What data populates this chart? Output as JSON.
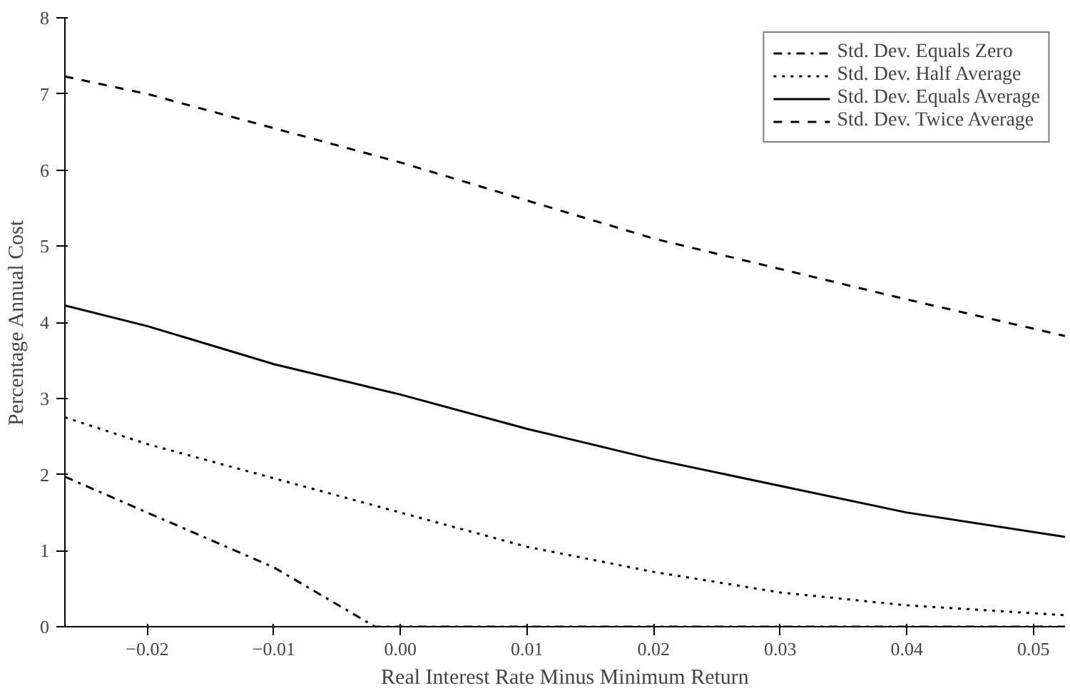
{
  "chart_data": {
    "type": "line",
    "xlabel": "Real Interest Rate Minus Minimum Return",
    "ylabel": "Percentage Annual Cost",
    "xlim": [
      -0.0265,
      0.0525
    ],
    "ylim": [
      0,
      8
    ],
    "xticks": [
      {
        "value": -0.02,
        "label": "−0.02"
      },
      {
        "value": -0.01,
        "label": "−0.01"
      },
      {
        "value": 0,
        "label": "0.00"
      },
      {
        "value": 0.01,
        "label": "0.01"
      },
      {
        "value": 0.02,
        "label": "0.02"
      },
      {
        "value": 0.03,
        "label": "0.03"
      },
      {
        "value": 0.04,
        "label": "0.04"
      },
      {
        "value": 0.05,
        "label": "0.05"
      }
    ],
    "yticks": [
      0,
      1,
      2,
      3,
      4,
      5,
      6,
      7,
      8
    ],
    "grid": false,
    "legend": "top right",
    "marker": "none",
    "series": [
      {
        "name": "Std. Dev. Equals Zero",
        "color": "#000000",
        "line_style": "dashdot",
        "x": [
          -0.0265,
          -0.02,
          -0.01,
          -0.002,
          0.0,
          0.01,
          0.02,
          0.03,
          0.04,
          0.0525
        ],
        "values": [
          1.97,
          1.5,
          0.78,
          0,
          0,
          0,
          0,
          0,
          0,
          0
        ]
      },
      {
        "name": "Std. Dev. Half Average",
        "color": "#000000",
        "line_style": "dotted",
        "x": [
          -0.0265,
          -0.02,
          -0.01,
          0.0,
          0.01,
          0.02,
          0.03,
          0.04,
          0.0525
        ],
        "values": [
          2.75,
          2.4,
          1.95,
          1.5,
          1.05,
          0.72,
          0.45,
          0.28,
          0.15
        ]
      },
      {
        "name": "Std. Dev. Equals Average",
        "color": "#000000",
        "line_style": "solid",
        "x": [
          -0.0265,
          -0.02,
          -0.01,
          0.0,
          0.01,
          0.02,
          0.03,
          0.04,
          0.0525
        ],
        "values": [
          4.22,
          3.95,
          3.45,
          3.05,
          2.6,
          2.2,
          1.85,
          1.5,
          1.18
        ]
      },
      {
        "name": "Std. Dev. Twice Average",
        "color": "#000000",
        "line_style": "dashed",
        "x": [
          -0.0265,
          -0.02,
          -0.01,
          0.0,
          0.01,
          0.02,
          0.03,
          0.04,
          0.0525
        ],
        "values": [
          7.23,
          7.0,
          6.55,
          6.1,
          5.6,
          5.1,
          4.7,
          4.3,
          3.82
        ]
      }
    ]
  }
}
